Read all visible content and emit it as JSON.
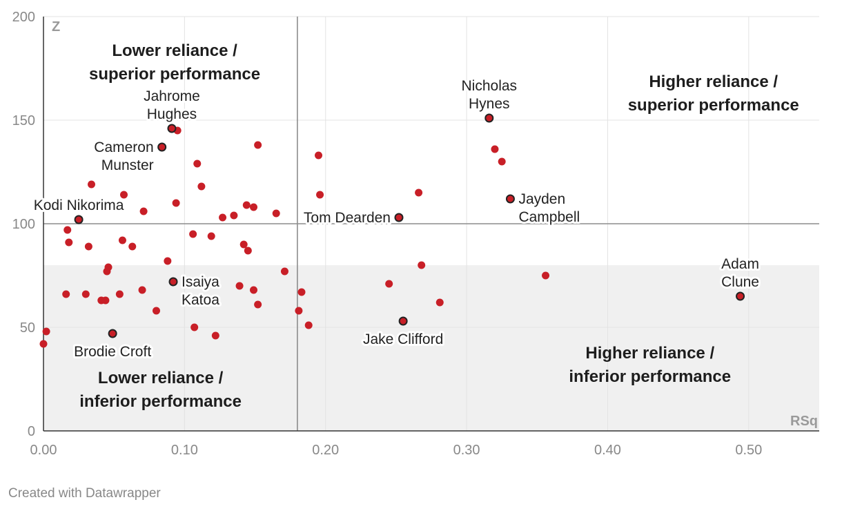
{
  "footer": "Created with Datawrapper",
  "colors": {
    "point": "#c81f27",
    "highlight": "#c81f27",
    "highlight_stroke": "#222222",
    "band": "#f0f0f0",
    "grid": "#e3e3e3",
    "refline": "#8c8c8c"
  },
  "chart_data": {
    "type": "scatter",
    "xlabel": "RSq",
    "ylabel": "Z",
    "xlim": [
      0,
      0.55
    ],
    "ylim": [
      0,
      200
    ],
    "x_ticks": [
      "0.00",
      "0.10",
      "0.20",
      "0.30",
      "0.40",
      "0.50"
    ],
    "y_ticks": [
      "0",
      "50",
      "100",
      "150",
      "200"
    ],
    "grid": true,
    "reference_lines": {
      "x": 0.18,
      "y": 100
    },
    "shaded_band": {
      "y_from": 0,
      "y_to": 80
    },
    "quadrant_labels": [
      {
        "lines": [
          "Lower reliance /",
          "superior performance"
        ],
        "x": 0.093,
        "y": 181
      },
      {
        "lines": [
          "Higher reliance /",
          "superior performance"
        ],
        "x": 0.475,
        "y": 166
      },
      {
        "lines": [
          "Lower reliance /",
          "inferior performance"
        ],
        "x": 0.083,
        "y": 23
      },
      {
        "lines": [
          "Higher reliance /",
          "inferior performance"
        ],
        "x": 0.43,
        "y": 35
      }
    ],
    "highlighted": [
      {
        "name": "Jahrome Hughes",
        "label_lines": [
          "Jahrome",
          "Hughes"
        ],
        "x": 0.091,
        "y": 146,
        "anchor": "above"
      },
      {
        "name": "Cameron Munster",
        "label_lines": [
          "Cameron",
          "Munster"
        ],
        "x": 0.084,
        "y": 137,
        "anchor": "left"
      },
      {
        "name": "Kodi Nikorima",
        "label_lines": [
          "Kodi Nikorima"
        ],
        "x": 0.025,
        "y": 102,
        "anchor": "above"
      },
      {
        "name": "Isaiya Katoa",
        "label_lines": [
          "Isaiya",
          "Katoa"
        ],
        "x": 0.092,
        "y": 72,
        "anchor": "right"
      },
      {
        "name": "Brodie Croft",
        "label_lines": [
          "Brodie Croft"
        ],
        "x": 0.049,
        "y": 47,
        "anchor": "below"
      },
      {
        "name": "Nicholas Hynes",
        "label_lines": [
          "Nicholas",
          "Hynes"
        ],
        "x": 0.316,
        "y": 151,
        "anchor": "above"
      },
      {
        "name": "Jayden Campbell",
        "label_lines": [
          "Jayden",
          "Campbell"
        ],
        "x": 0.331,
        "y": 112,
        "anchor": "right"
      },
      {
        "name": "Tom Dearden",
        "label_lines": [
          "Tom Dearden"
        ],
        "x": 0.252,
        "y": 103,
        "anchor": "left"
      },
      {
        "name": "Jake Clifford",
        "label_lines": [
          "Jake Clifford"
        ],
        "x": 0.255,
        "y": 53,
        "anchor": "below"
      },
      {
        "name": "Adam Clune",
        "label_lines": [
          "Adam",
          "Clune"
        ],
        "x": 0.494,
        "y": 65,
        "anchor": "above"
      }
    ],
    "points": [
      {
        "x": 0.0,
        "y": 42
      },
      {
        "x": 0.002,
        "y": 48
      },
      {
        "x": 0.016,
        "y": 66
      },
      {
        "x": 0.017,
        "y": 97
      },
      {
        "x": 0.018,
        "y": 91
      },
      {
        "x": 0.03,
        "y": 66
      },
      {
        "x": 0.032,
        "y": 89
      },
      {
        "x": 0.034,
        "y": 119
      },
      {
        "x": 0.041,
        "y": 63
      },
      {
        "x": 0.044,
        "y": 63
      },
      {
        "x": 0.045,
        "y": 77
      },
      {
        "x": 0.046,
        "y": 79
      },
      {
        "x": 0.054,
        "y": 66
      },
      {
        "x": 0.056,
        "y": 92
      },
      {
        "x": 0.057,
        "y": 114
      },
      {
        "x": 0.063,
        "y": 89
      },
      {
        "x": 0.07,
        "y": 68
      },
      {
        "x": 0.071,
        "y": 106
      },
      {
        "x": 0.08,
        "y": 58
      },
      {
        "x": 0.088,
        "y": 82
      },
      {
        "x": 0.094,
        "y": 110
      },
      {
        "x": 0.095,
        "y": 145
      },
      {
        "x": 0.106,
        "y": 95
      },
      {
        "x": 0.107,
        "y": 50
      },
      {
        "x": 0.109,
        "y": 129
      },
      {
        "x": 0.112,
        "y": 118
      },
      {
        "x": 0.119,
        "y": 94
      },
      {
        "x": 0.122,
        "y": 46
      },
      {
        "x": 0.127,
        "y": 103
      },
      {
        "x": 0.135,
        "y": 104
      },
      {
        "x": 0.139,
        "y": 70
      },
      {
        "x": 0.142,
        "y": 90
      },
      {
        "x": 0.144,
        "y": 109
      },
      {
        "x": 0.145,
        "y": 87
      },
      {
        "x": 0.149,
        "y": 68
      },
      {
        "x": 0.149,
        "y": 108
      },
      {
        "x": 0.152,
        "y": 61
      },
      {
        "x": 0.152,
        "y": 138
      },
      {
        "x": 0.165,
        "y": 105
      },
      {
        "x": 0.171,
        "y": 77
      },
      {
        "x": 0.181,
        "y": 58
      },
      {
        "x": 0.183,
        "y": 67
      },
      {
        "x": 0.188,
        "y": 51
      },
      {
        "x": 0.195,
        "y": 133
      },
      {
        "x": 0.196,
        "y": 114
      },
      {
        "x": 0.245,
        "y": 71
      },
      {
        "x": 0.266,
        "y": 115
      },
      {
        "x": 0.268,
        "y": 80
      },
      {
        "x": 0.281,
        "y": 62
      },
      {
        "x": 0.32,
        "y": 136
      },
      {
        "x": 0.325,
        "y": 130
      },
      {
        "x": 0.356,
        "y": 75
      }
    ]
  }
}
